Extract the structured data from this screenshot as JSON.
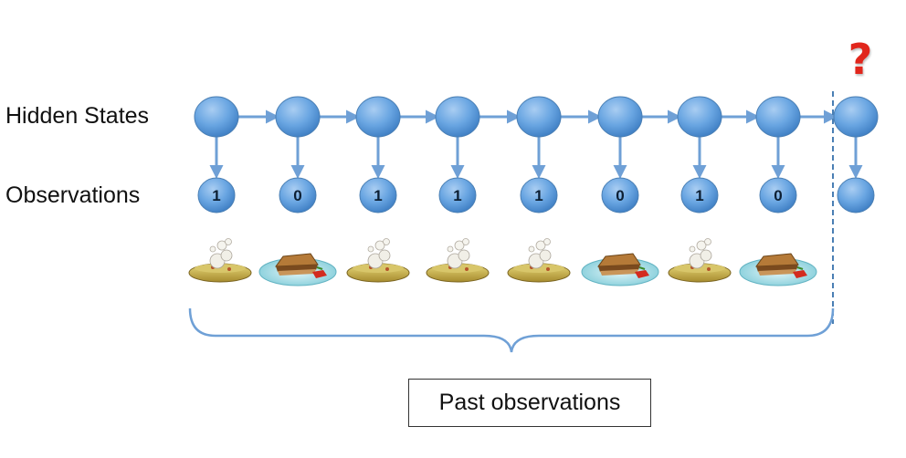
{
  "labels": {
    "hidden_states": "Hidden States",
    "observations": "Observations",
    "past_observations": "Past observations",
    "unknown_marker": "?"
  },
  "sequence": {
    "observed_values": [
      "1",
      "0",
      "1",
      "1",
      "1",
      "0",
      "1",
      "0"
    ],
    "meal_pictures": [
      "soup",
      "sandwich",
      "soup",
      "soup",
      "soup",
      "sandwich",
      "soup",
      "sandwich"
    ],
    "future_value": ""
  },
  "colors": {
    "node_fill": "#5b9bd5",
    "node_edge": "#4a7fb4",
    "arrow": "#6fa0d6",
    "marker": "#e1261c"
  }
}
